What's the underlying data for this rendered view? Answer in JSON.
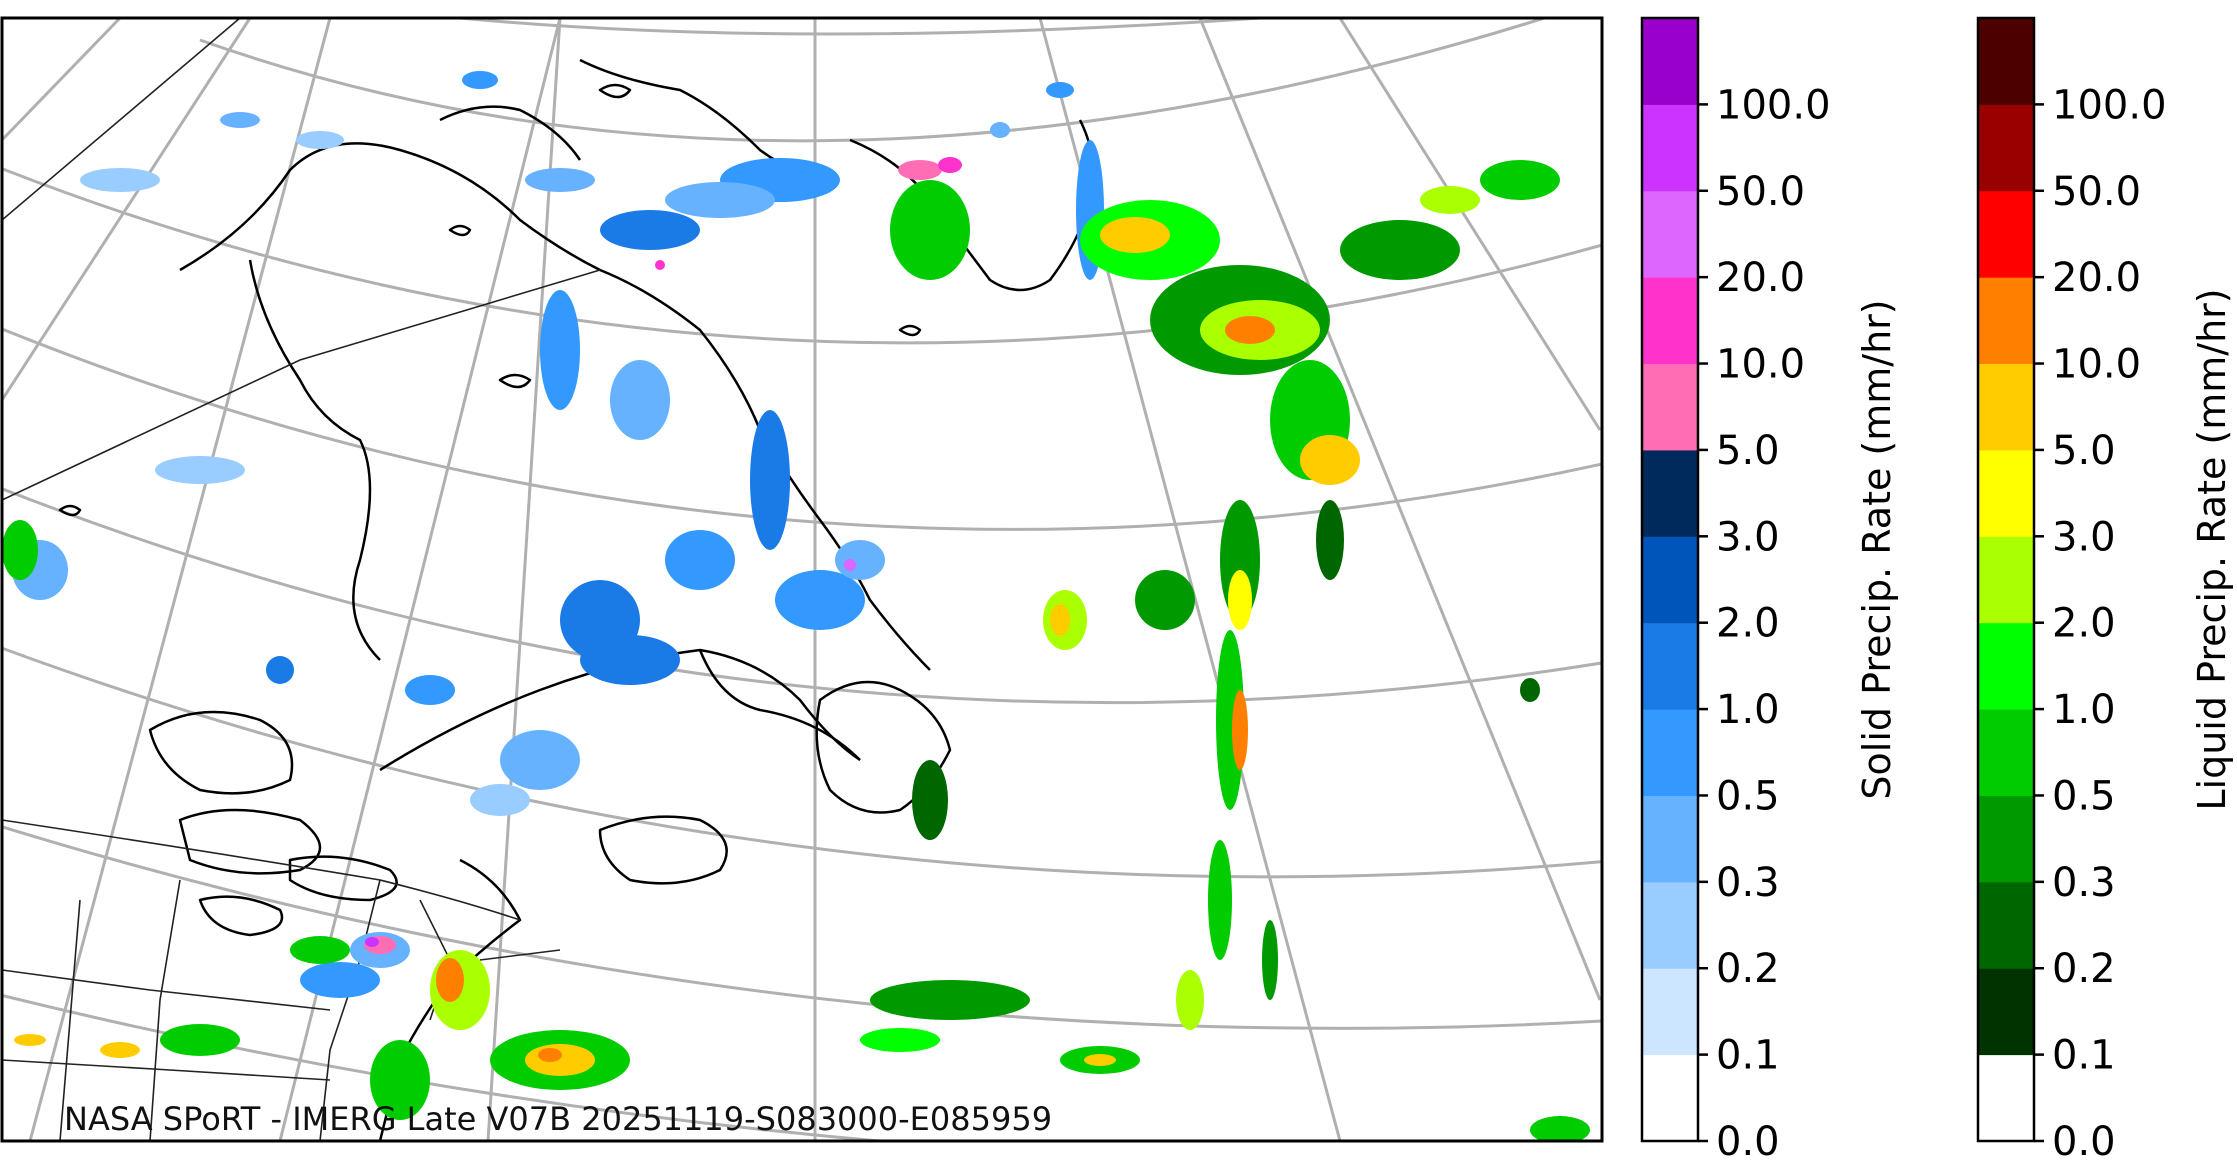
{
  "credit": "NASA SPoRT - IMERG Late V07B 20251119-S083000-E085959",
  "colors": {
    "coast": "#000000",
    "border": "#222222",
    "graticule": "#b0b0b0"
  },
  "solid_colorbar": {
    "title": "Solid Precip. Rate (mm/hr)",
    "ticks": [
      "0.0",
      "0.1",
      "0.2",
      "0.3",
      "0.5",
      "1.0",
      "2.0",
      "3.0",
      "5.0",
      "10.0",
      "20.0",
      "50.0",
      "100.0"
    ],
    "colors": [
      "#ffffff",
      "#cce6ff",
      "#99ccff",
      "#66b2ff",
      "#3399ff",
      "#1a7ae6",
      "#0055bb",
      "#002a5c",
      "#ff6eb4",
      "#ff33cc",
      "#dd66ff",
      "#cc33ff",
      "#9900cc"
    ]
  },
  "liquid_colorbar": {
    "title": "Liquid Precip. Rate (mm/hr)",
    "ticks": [
      "0.0",
      "0.1",
      "0.2",
      "0.3",
      "0.5",
      "1.0",
      "2.0",
      "3.0",
      "5.0",
      "10.0",
      "20.0",
      "50.0",
      "100.0"
    ],
    "colors": [
      "#ffffff",
      "#003300",
      "#006600",
      "#009900",
      "#00cc00",
      "#00ff00",
      "#aaff00",
      "#ffff00",
      "#ffcc00",
      "#ff8000",
      "#ff0000",
      "#990000",
      "#4d0000"
    ]
  }
}
